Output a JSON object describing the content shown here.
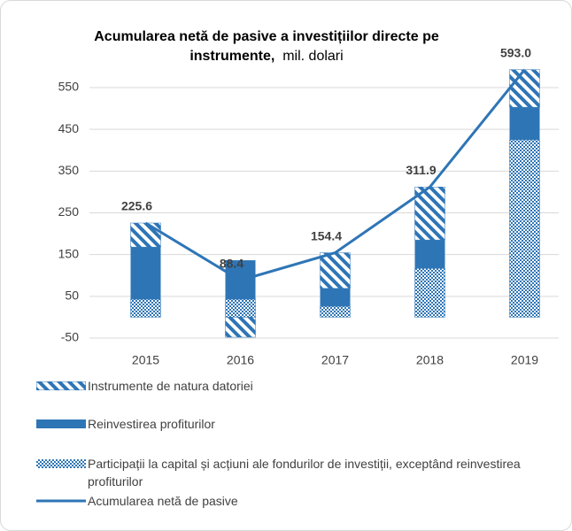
{
  "chart_data": {
    "type": "bar",
    "stacked": true,
    "title": "Acumularea netă de pasive a investițiilor directe pe instrumente,",
    "title_unit": "mil. dolari",
    "categories": [
      "2015",
      "2016",
      "2017",
      "2018",
      "2019"
    ],
    "series": [
      {
        "name": "Participații la capital și acțiuni ale fondurilor de investiții, exceptând reinvestirea profiturilor",
        "color": "#2e75b6",
        "pattern": "dots",
        "values": [
          43,
          43,
          26,
          117,
          425
        ]
      },
      {
        "name": "Reinvestirea profiturilor",
        "color": "#2e75b6",
        "pattern": "solid",
        "values": [
          125,
          93.4,
          43,
          68,
          78
        ]
      },
      {
        "name": "Instrumente de natura datoriei",
        "color": "#2e75b6",
        "pattern": "diagonal",
        "values": [
          57.6,
          -48,
          85.4,
          126.9,
          90
        ]
      },
      {
        "name": "Acumularea netă de pasive",
        "color": "#2e75b6",
        "type": "line",
        "values": [
          225.6,
          88.4,
          154.4,
          311.9,
          593.0
        ],
        "value_labels": [
          "225.6",
          "88.4",
          "154.4",
          "311.9",
          "593.0"
        ]
      }
    ],
    "ylim": [
      -50,
      600
    ],
    "yticks": [
      -50,
      50,
      150,
      250,
      350,
      450,
      550
    ],
    "grid": true
  }
}
